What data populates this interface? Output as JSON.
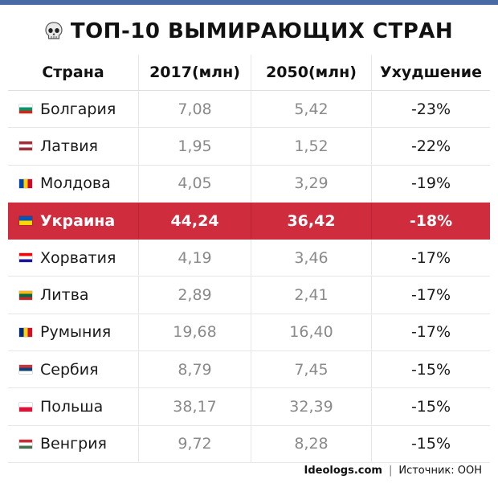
{
  "title": "ТОП-10 ВЫМИРАЮЩИХ СТРАН",
  "headers": [
    "Страна",
    "2017(млн)",
    "2050(млн)",
    "Ухудшение"
  ],
  "rows": [
    {
      "country": "Болгария",
      "v2017": "7,08",
      "v2050": "5,42",
      "change": "-23%",
      "flag": [
        "#ffffff",
        "#00966e",
        "#d62612"
      ],
      "flag_dir": "h"
    },
    {
      "country": "Латвия",
      "v2017": "1,95",
      "v2050": "1,52",
      "change": "-22%",
      "flag": [
        "#9e3039",
        "#ffffff",
        "#9e3039"
      ],
      "flag_dir": "h"
    },
    {
      "country": "Молдова",
      "v2017": "4,05",
      "v2050": "3,29",
      "change": "-19%",
      "flag": [
        "#0046ae",
        "#ffd200",
        "#cc092f"
      ],
      "flag_dir": "v"
    },
    {
      "country": "Украина",
      "v2017": "44,24",
      "v2050": "36,42",
      "change": "-18%",
      "flag": [
        "#0057b7",
        "#ffd700"
      ],
      "flag_dir": "h",
      "highlight": true
    },
    {
      "country": "Хорватия",
      "v2017": "4,19",
      "v2050": "3,46",
      "change": "-17%",
      "flag": [
        "#ff0000",
        "#ffffff",
        "#171796"
      ],
      "flag_dir": "h"
    },
    {
      "country": "Литва",
      "v2017": "2,89",
      "v2050": "2,41",
      "change": "-17%",
      "flag": [
        "#fdb913",
        "#006a44",
        "#c1272d"
      ],
      "flag_dir": "h"
    },
    {
      "country": "Румыния",
      "v2017": "19,68",
      "v2050": "16,40",
      "change": "-17%",
      "flag": [
        "#002b7f",
        "#fcd116",
        "#ce1126"
      ],
      "flag_dir": "v"
    },
    {
      "country": "Сербия",
      "v2017": "8,79",
      "v2050": "7,45",
      "change": "-15%",
      "flag": [
        "#c6363c",
        "#0c4076",
        "#ffffff"
      ],
      "flag_dir": "h"
    },
    {
      "country": "Польша",
      "v2017": "38,17",
      "v2050": "32,39",
      "change": "-15%",
      "flag": [
        "#ffffff",
        "#dc143c"
      ],
      "flag_dir": "h"
    },
    {
      "country": "Венгрия",
      "v2017": "9,72",
      "v2050": "8,28",
      "change": "-15%",
      "flag": [
        "#ce2939",
        "#ffffff",
        "#477050"
      ],
      "flag_dir": "h"
    }
  ],
  "footer": {
    "site": "Ideologs.com",
    "separator": "|",
    "source": "Источник: ООН"
  },
  "colors": {
    "highlight": "#cf2c3d",
    "top_strip": "#4a6aa5"
  }
}
